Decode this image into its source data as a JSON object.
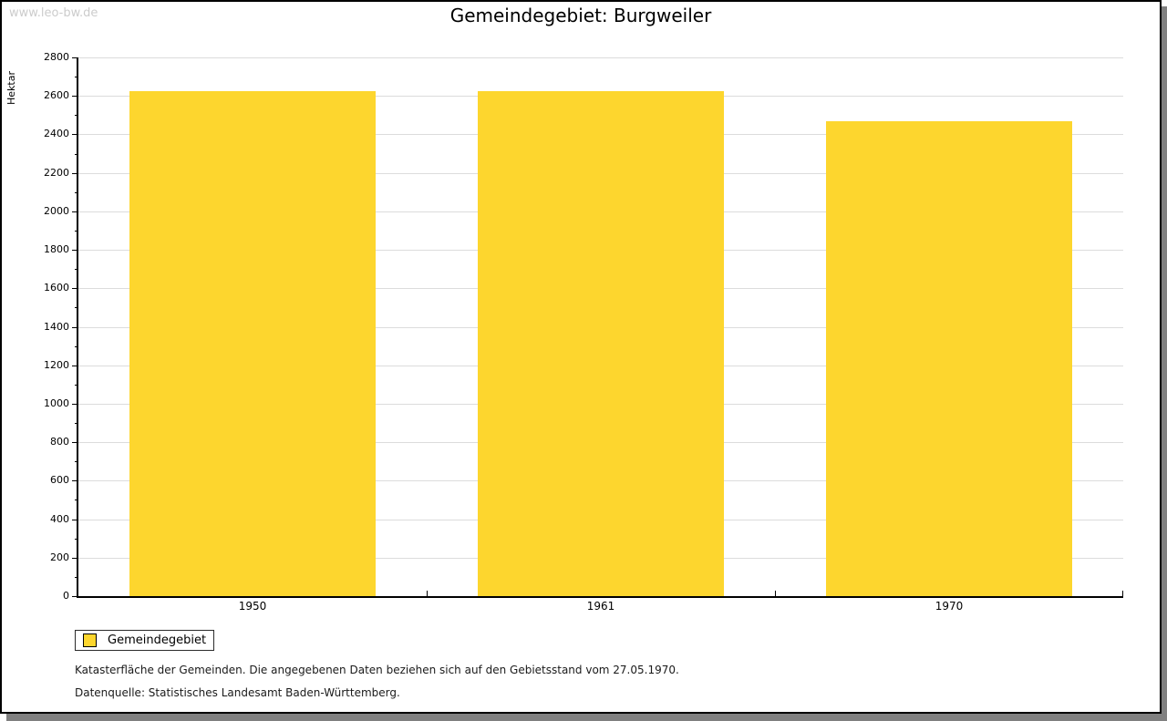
{
  "watermark": "www.leo-bw.de",
  "title": "Gemeindegebiet: Burgweiler",
  "legend": {
    "label": "Gemeindegebiet",
    "swatch_color": "#fdd62e"
  },
  "footnotes": {
    "line1": "Katasterfläche der Gemeinden. Die angegebenen Daten beziehen sich auf den Gebietsstand vom 27.05.1970.",
    "line2": "Datenquelle: Statistisches Landesamt Baden-Württemberg."
  },
  "chart_data": {
    "type": "bar",
    "title": "Gemeindegebiet: Burgweiler",
    "categories": [
      "1950",
      "1961",
      "1970"
    ],
    "series": [
      {
        "name": "Gemeindegebiet",
        "values": [
          2625,
          2626,
          2468
        ]
      }
    ],
    "xlabel": "",
    "ylabel": "Hektar",
    "ylim": [
      0,
      2800
    ],
    "ytick_step": 200,
    "yminor_step": 100,
    "grid": true,
    "legend_position": "bottom-left",
    "bar_color": "#fdd62e",
    "grid_color": "#dcdcdc",
    "axis_color": "#000000"
  }
}
